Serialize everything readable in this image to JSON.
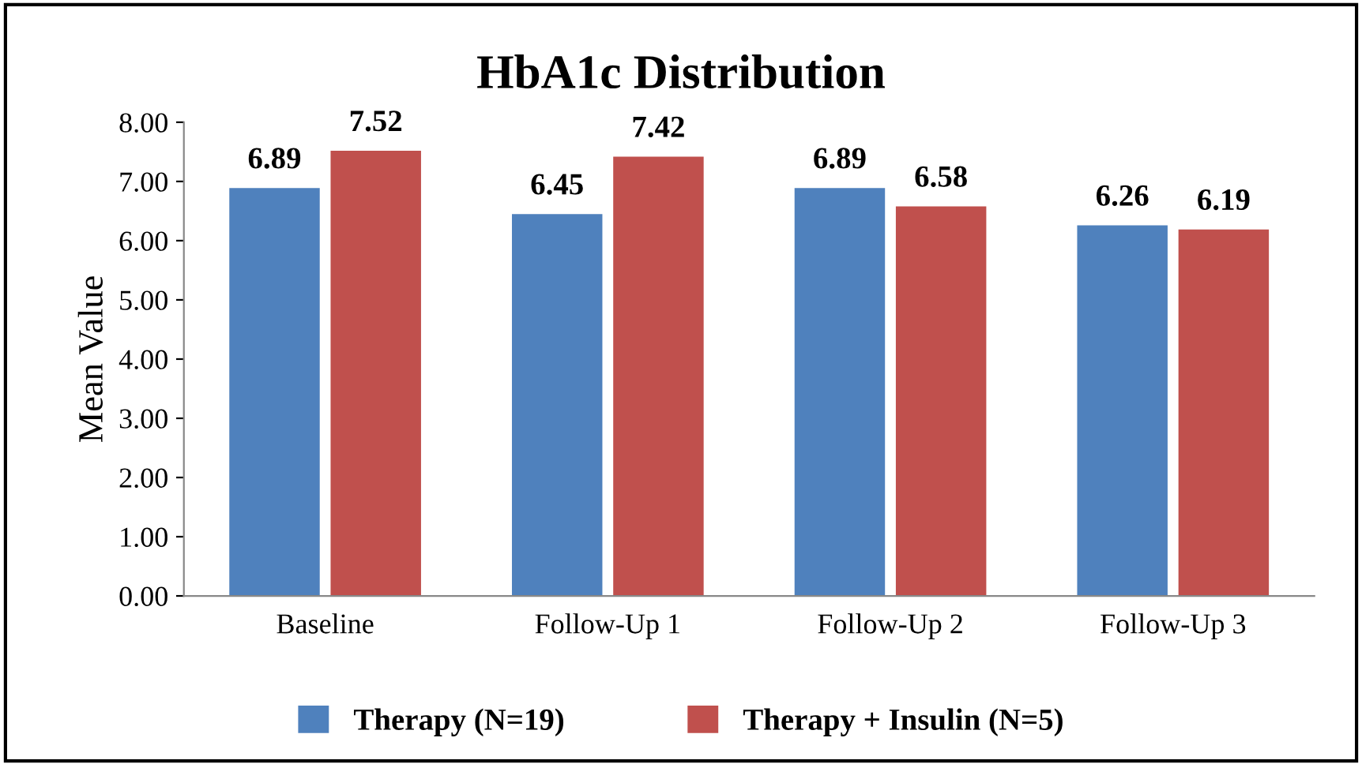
{
  "chart_data": {
    "type": "bar",
    "title": "HbA1c Distribution",
    "ylabel": "Mean Value",
    "categories": [
      "Baseline",
      "Follow-Up 1",
      "Follow-Up 2",
      "Follow-Up 3"
    ],
    "series": [
      {
        "name": "Therapy (N=19)",
        "color": "#4f81bd",
        "values": [
          6.89,
          6.45,
          6.89,
          6.26
        ]
      },
      {
        "name": "Therapy + Insulin (N=5)",
        "color": "#c0504d",
        "values": [
          7.52,
          7.42,
          6.58,
          6.19
        ]
      }
    ],
    "ylim": [
      0,
      8
    ],
    "yticks": [
      {
        "value": 0,
        "label": "0.00"
      },
      {
        "value": 1,
        "label": "1.00"
      },
      {
        "value": 2,
        "label": "2.00"
      },
      {
        "value": 3,
        "label": "3.00"
      },
      {
        "value": 4,
        "label": "4.00"
      },
      {
        "value": 5,
        "label": "5.00"
      },
      {
        "value": 6,
        "label": "6.00"
      },
      {
        "value": 7,
        "label": "7.00"
      },
      {
        "value": 8,
        "label": "8.00"
      }
    ],
    "data_labels": true,
    "legend": "bottom",
    "grid": false
  }
}
